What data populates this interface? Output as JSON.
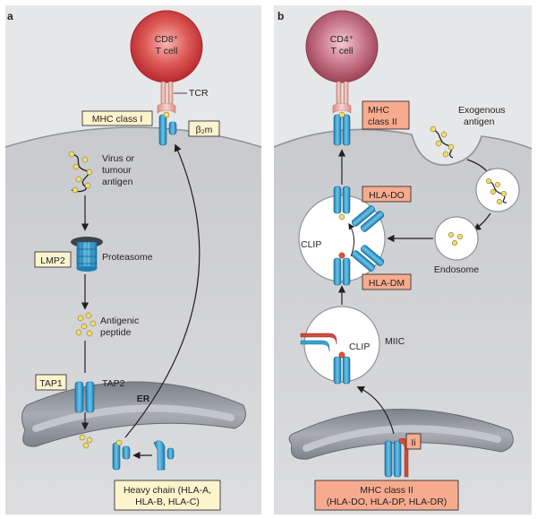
{
  "panel_a": {
    "letter": "a",
    "tcell_line1": "CD8⁺",
    "tcell_line2": "T cell",
    "tcr": "TCR",
    "mhc_class1": "MHC class I",
    "b2m": "β₂m",
    "virus_line1": "Virus or",
    "virus_line2": "tumour",
    "virus_line3": "antigen",
    "lmp2": "LMP2",
    "proteasome": "Proteasome",
    "peptide_line1": "Antigenic",
    "peptide_line2": "peptide",
    "tap1": "TAP1",
    "tap2": "TAP2",
    "er": "ER",
    "heavy_line1": "Heavy chain (HLA-A,",
    "heavy_line2": "HLA-B, HLA-C)"
  },
  "panel_b": {
    "letter": "b",
    "tcell_line1": "CD4⁺",
    "tcell_line2": "T cell",
    "mhc_line1": "MHC",
    "mhc_line2": "class II",
    "exo_line1": "Exogenous",
    "exo_line2": "antigen",
    "hla_do": "HLA-DO",
    "clip_top": "CLIP",
    "endosome": "Endosome",
    "hla_dm": "HLA-DM",
    "clip_miic": "CLIP",
    "miic": "MIIC",
    "ii": "Ii",
    "mhc2_line1": "MHC class II",
    "mhc2_line2": "(HLA-DO, HLA-DP, HLA-DR)"
  },
  "colors": {
    "panel_bg": "#e5e6e7",
    "cell_interior": "#d2d3d5",
    "cd8_cell": "#c8363a",
    "cd4_cell": "#b0586b",
    "mhc_blue": "#3aa3d4",
    "tcr_pink": "#e8b3ad",
    "label_yellow": "#fdf3cd",
    "label_salmon": "#f6ab8f",
    "er_gray": "#8d9299",
    "peptide_yellow": "#f1dc6d"
  }
}
